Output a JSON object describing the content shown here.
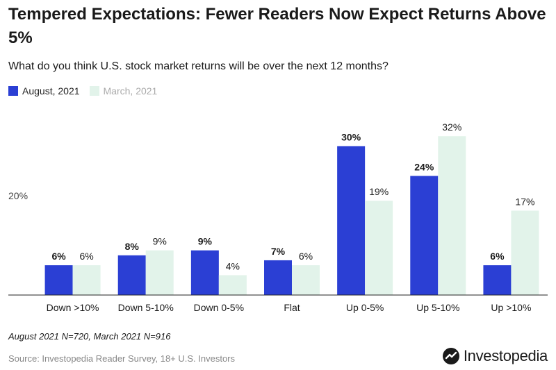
{
  "chart_data": {
    "type": "bar",
    "title": "Tempered Expectations: Fewer Readers Now Expect Returns Above 5%",
    "subtitle": "What do you think U.S. stock market returns will be over the next 12 months?",
    "categories": [
      "Down >10%",
      "Down 5-10%",
      "Down 0-5%",
      "Flat",
      "Up 0-5%",
      "Up 5-10%",
      "Up >10%"
    ],
    "series": [
      {
        "name": "August, 2021",
        "values": [
          6,
          8,
          9,
          7,
          30,
          24,
          6
        ],
        "color": "#2b3fd4"
      },
      {
        "name": "March, 2021",
        "values": [
          6,
          9,
          4,
          6,
          19,
          32,
          17
        ],
        "color": "#e2f3ea"
      }
    ],
    "value_suffix": "%",
    "ylim": [
      0,
      35
    ],
    "y_ticks": [
      {
        "value": 20,
        "label": "20%"
      }
    ],
    "grid": false,
    "legend_position": "top-left"
  },
  "note": "August 2021 N=720, March 2021 N=916",
  "source": "Source: Investopedia Reader Survey, 18+ U.S. Investors",
  "brand": {
    "name": "Investopedia",
    "logo_icon": "investopedia-logo-icon"
  }
}
